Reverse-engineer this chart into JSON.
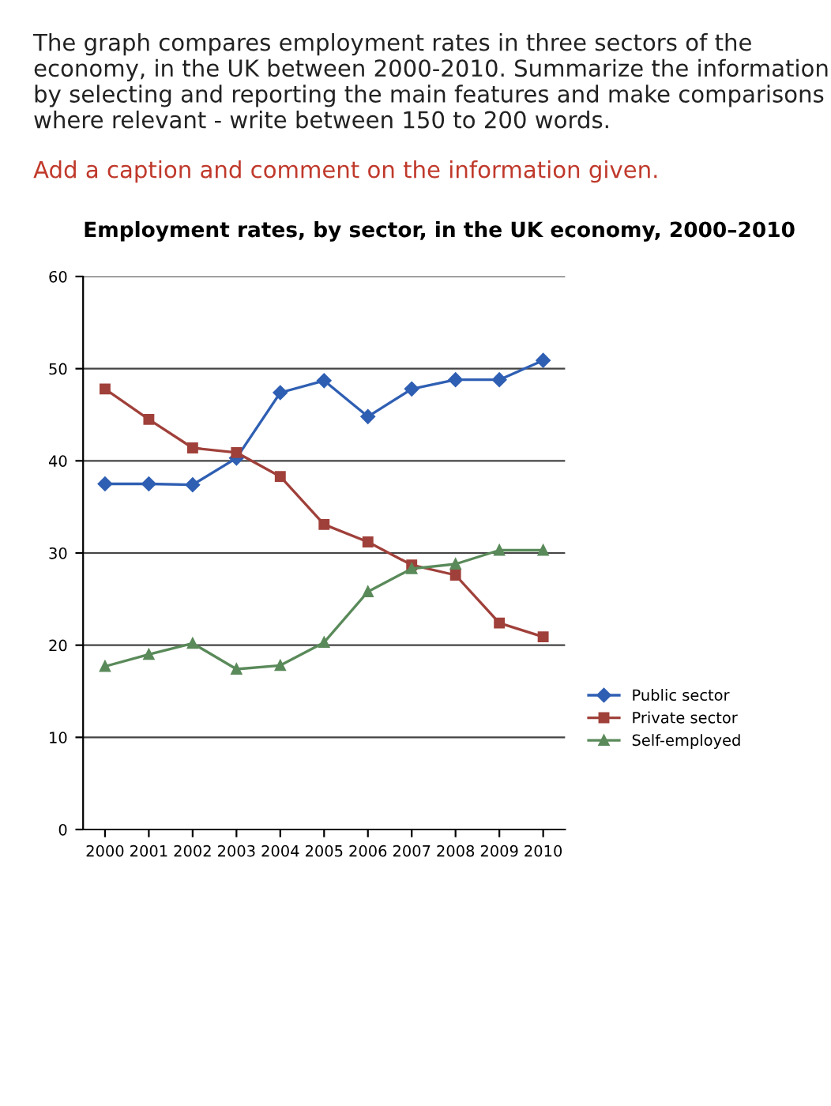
{
  "chart_data": {
    "type": "line",
    "title": "Employment rates, by sector, in the UK economy, 2000–2010",
    "annotations": [
      "The graph compares employment rates in three sectors of the economy, in the UK between 2000-2010. Summarize the information by selecting and reporting the main features and make comparisons where relevant - write between 150 to 200 words.",
      "Add a caption and comment on the information given."
    ],
    "categories": [
      "2000",
      "2001",
      "2002",
      "2003",
      "2004",
      "2005",
      "2006",
      "2007",
      "2008",
      "2009",
      "2010"
    ],
    "series": [
      {
        "name": "Public sector",
        "color": "#2f5fb3",
        "marker": "diamond",
        "values": [
          37.5,
          37.5,
          37.4,
          40.3,
          47.4,
          48.7,
          44.8,
          47.8,
          48.8,
          48.8,
          50.9
        ]
      },
      {
        "name": "Private sector",
        "color": "#a0403a",
        "marker": "square",
        "values": [
          47.8,
          44.5,
          41.4,
          40.9,
          38.3,
          33.1,
          31.2,
          28.7,
          27.6,
          22.4,
          20.9
        ]
      },
      {
        "name": "Self-employed",
        "color": "#5a8a5a",
        "marker": "triangle",
        "values": [
          17.7,
          19,
          20.2,
          17.4,
          17.8,
          20.3,
          25.8,
          28.3,
          28.8,
          30.3,
          30.3
        ]
      }
    ],
    "ylim": [
      0,
      60
    ],
    "yticks": [
      0,
      10,
      20,
      30,
      40,
      50,
      60
    ],
    "grid": "y",
    "legend": "right",
    "line_style": "solid"
  }
}
